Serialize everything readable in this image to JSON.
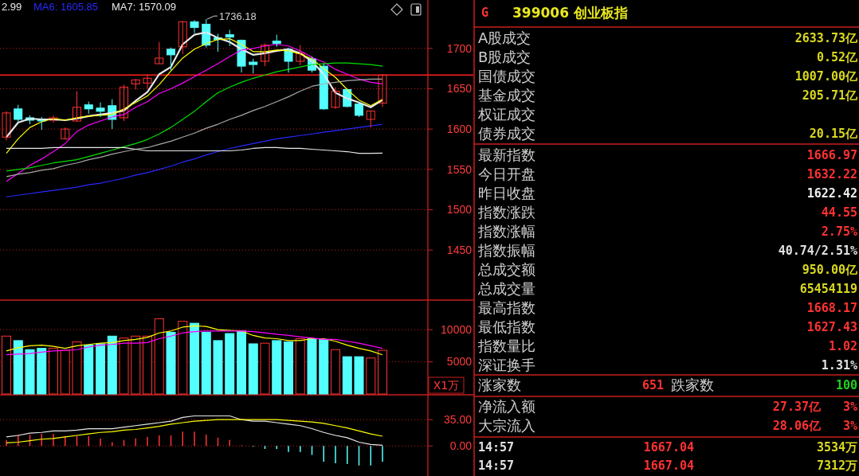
{
  "chart_data": [
    {
      "type": "candlestick",
      "categories": [
        null,
        null,
        null,
        null,
        null,
        null,
        null,
        null,
        null,
        null,
        null,
        null,
        null,
        null,
        null,
        null,
        null,
        null,
        null,
        null,
        null,
        null,
        null,
        null,
        null,
        null,
        null,
        null,
        null,
        null,
        null,
        null,
        null
      ],
      "ohlc": [
        [
          1590,
          1622,
          1586,
          1620
        ],
        [
          1625,
          1630,
          1608,
          1612
        ],
        [
          1614,
          1617,
          1606,
          1611
        ],
        [
          1612,
          1615,
          1599,
          1610
        ],
        [
          1611,
          1617,
          1608,
          1614
        ],
        [
          1588,
          1602,
          1587,
          1600
        ],
        [
          1610,
          1647,
          1609,
          1627
        ],
        [
          1630,
          1634,
          1619,
          1625
        ],
        [
          1626,
          1633,
          1615,
          1622
        ],
        [
          1629,
          1637,
          1600,
          1612
        ],
        [
          1614,
          1655,
          1610,
          1652
        ],
        [
          1656,
          1662,
          1649,
          1661
        ],
        [
          1657,
          1668,
          1650,
          1663
        ],
        [
          1681,
          1708,
          1681,
          1688
        ],
        [
          1699,
          1701,
          1673,
          1692
        ],
        [
          1702,
          1734,
          1693,
          1733
        ],
        [
          1733,
          1735,
          1719,
          1726
        ],
        [
          1730,
          1736.18,
          1701,
          1704
        ],
        [
          1713,
          1718,
          1696,
          1711
        ],
        [
          1717,
          1723,
          1703,
          1714
        ],
        [
          1710,
          1711,
          1670,
          1678
        ],
        [
          1683,
          1687,
          1669,
          1680
        ],
        [
          1684,
          1706,
          1678,
          1704
        ],
        [
          1709,
          1717,
          1702,
          1706
        ],
        [
          1699,
          1701,
          1670,
          1684
        ],
        [
          1684,
          1704,
          1679,
          1694
        ],
        [
          1687,
          1690,
          1670,
          1673
        ],
        [
          1678,
          1681,
          1624,
          1625
        ],
        [
          1627,
          1652,
          1625,
          1647
        ],
        [
          1649,
          1650,
          1627,
          1628
        ],
        [
          1631,
          1633,
          1615,
          1617
        ],
        [
          1612,
          1622.42,
          1602,
          1622.42
        ],
        [
          1632.22,
          1668.17,
          1627.43,
          1666.97
        ]
      ],
      "colors": [
        "#ff3232",
        "#54ffff",
        "#54ffff",
        "#54ffff",
        "#ff3232",
        "#ff3232",
        "#ff3232",
        "#54ffff",
        "#54ffff",
        "#54ffff",
        "#ff3232",
        "#ff3232",
        "#ff3232",
        "#ff3232",
        "#54ffff",
        "#ff3232",
        "#54ffff",
        "#54ffff",
        "#54ffff",
        "#54ffff",
        "#54ffff",
        "#54ffff",
        "#ff3232",
        "#54ffff",
        "#54ffff",
        "#ff3232",
        "#54ffff",
        "#54ffff",
        "#ff3232",
        "#54ffff",
        "#54ffff",
        "#ff3232",
        "#ff3232"
      ],
      "series": [
        {
          "type": "line",
          "color": "#e8e8e8",
          "values": [
            1590,
            1608,
            1613,
            1612,
            1612,
            1611,
            1613,
            1616,
            1618,
            1620,
            1623,
            1635,
            1646,
            1668,
            1677,
            1705,
            1717,
            1720,
            1713,
            1708,
            1699,
            1692,
            1694,
            1697,
            1699,
            1694,
            1684,
            1668,
            1645,
            1638,
            1633,
            1627,
            1636
          ]
        },
        {
          "type": "line",
          "color": "#ffff00",
          "values": [
            1570,
            1588,
            1602,
            1609,
            1613,
            1611,
            1614,
            1616,
            1617,
            1618,
            1625,
            1633,
            1641,
            1655,
            1672,
            1688,
            1699,
            1706,
            1711,
            1712,
            1705,
            1696,
            1696,
            1698,
            1697,
            1693,
            1687,
            1675,
            1664,
            1649,
            1636,
            1629,
            1637
          ]
        },
        {
          "type": "line",
          "color": "#ff00ff",
          "values": [
            1535,
            1545,
            1555,
            1563,
            1572,
            1582,
            1597,
            1605,
            1610,
            1615,
            1618,
            1627,
            1634,
            1644,
            1650,
            1657,
            1665,
            1673,
            1681,
            1690,
            1698,
            1700,
            1703,
            1705,
            1703,
            1697,
            1689,
            1683,
            1674,
            1668,
            1662,
            1658,
            1656
          ]
        },
        {
          "type": "line",
          "color": "#00e000",
          "values": [
            1548,
            1550,
            1552,
            1555,
            1558,
            1560,
            1562,
            1566,
            1570,
            1574,
            1578,
            1582,
            1587,
            1594,
            1602,
            1612,
            1622,
            1634,
            1645,
            1652,
            1658,
            1663,
            1667,
            1671,
            1674,
            1677,
            1680,
            1681,
            1682,
            1682,
            1681,
            1680,
            1678
          ]
        },
        {
          "type": "line",
          "color": "#a8a8a8",
          "values": [
            1541,
            1544,
            1546,
            1549,
            1551,
            1555,
            1558,
            1562,
            1565,
            1569,
            1572,
            1575,
            1577,
            1581,
            1585,
            1590,
            1595,
            1601,
            1606,
            1612,
            1617,
            1623,
            1628,
            1634,
            1640,
            1647,
            1653,
            1656,
            1658,
            1660,
            1661,
            1662,
            1662
          ]
        },
        {
          "type": "line",
          "name": "MA6: 1605.85",
          "color": "#2828ff",
          "values": [
            1516,
            1518,
            1520,
            1522,
            1524,
            1526,
            1528,
            1531,
            1533,
            1536,
            1539,
            1543,
            1546,
            1550,
            1554,
            1559,
            1563,
            1568,
            1572,
            1576,
            1579,
            1582,
            1585,
            1588,
            1590,
            1592,
            1594,
            1596,
            1598,
            1600,
            1602,
            1604,
            1605.85
          ]
        },
        {
          "type": "line",
          "name": "MA7: 1570.09",
          "color": "#e8e8e8",
          "values": [
            1576,
            1576,
            1576,
            1576,
            1577,
            1577,
            1577,
            1577,
            1577,
            1577,
            1577,
            1575,
            1573,
            1573,
            1573,
            1573,
            1573,
            1573,
            1573,
            1573,
            1574,
            1576,
            1577,
            1577,
            1576,
            1576,
            1575,
            1574,
            1573,
            1572,
            1570,
            1570,
            1570.09
          ]
        }
      ],
      "ylim": [
        1388,
        1760
      ],
      "yticks": [
        1450,
        1500,
        1550,
        1600,
        1650,
        1700
      ],
      "grid": "y",
      "tick_labels": "y",
      "legend": "top left",
      "ref_lines": [
        {
          "axis": "y",
          "value": 1667,
          "color": "#ff2020"
        }
      ],
      "annotations": [
        "2.99",
        "1736.18"
      ]
    },
    {
      "type": "bar",
      "categories": [
        null,
        null,
        null,
        null,
        null,
        null,
        null,
        null,
        null,
        null,
        null,
        null,
        null,
        null,
        null,
        null,
        null,
        null,
        null,
        null,
        null,
        null,
        null,
        null,
        null,
        null,
        null,
        null,
        null,
        null,
        null,
        null,
        null
      ],
      "series": [
        {
          "color": "#ff3232",
          "values": [
            9000,
            null,
            null,
            null,
            7100,
            6800,
            8100,
            null,
            null,
            null,
            8700,
            9000,
            9000,
            11700,
            null,
            11300,
            null,
            null,
            null,
            null,
            null,
            null,
            7900,
            null,
            null,
            8600,
            null,
            null,
            6900,
            null,
            null,
            5600,
            6800
          ]
        },
        {
          "color": "#54ffff",
          "values": [
            null,
            8300,
            6900,
            7100,
            null,
            null,
            null,
            7600,
            7800,
            9000,
            null,
            null,
            null,
            null,
            9600,
            null,
            11000,
            9600,
            8300,
            9400,
            9800,
            7800,
            null,
            8300,
            8100,
            null,
            8600,
            8500,
            null,
            5800,
            5800,
            null,
            null
          ]
        },
        {
          "type": "line",
          "color": "#ffff00",
          "values": [
            6700,
            7200,
            7500,
            7600,
            7400,
            7100,
            7500,
            7700,
            7900,
            8000,
            8300,
            8500,
            8800,
            9500,
            9800,
            10400,
            10600,
            10500,
            10000,
            9900,
            9800,
            9100,
            8700,
            8600,
            8300,
            8300,
            8600,
            8600,
            8200,
            7600,
            7100,
            6700,
            6100
          ]
        },
        {
          "type": "line",
          "color": "#ff00ff",
          "values": [
            6100,
            6200,
            6300,
            6500,
            6700,
            6800,
            6900,
            7300,
            7600,
            7700,
            7900,
            7900,
            8000,
            8600,
            9000,
            9500,
            9700,
            9800,
            9800,
            9800,
            9800,
            9700,
            9500,
            9300,
            9100,
            8900,
            8700,
            8500,
            8500,
            8200,
            7900,
            7500,
            7100
          ]
        }
      ],
      "ylim": [
        0,
        14600
      ],
      "yticks": [
        5000,
        10000
      ],
      "ylabel": "X1万",
      "grid": "y",
      "tick_labels": "y"
    },
    {
      "type": "bar",
      "categories": [
        null,
        null,
        null,
        null,
        null,
        null,
        null,
        null,
        null,
        null,
        null,
        null,
        null,
        null,
        null,
        null,
        null,
        null,
        null,
        null,
        null,
        null,
        null,
        null,
        null,
        null,
        null,
        null,
        null,
        null,
        null,
        null,
        null
      ],
      "series": [
        {
          "color": "#ff3232",
          "values": [
            8,
            15,
            15,
            16,
            16,
            13,
            13,
            13,
            10,
            5,
            8,
            10,
            12,
            14,
            14,
            19,
            19,
            15,
            11,
            8,
            1,
            null,
            null,
            null,
            null,
            null,
            null,
            null,
            null,
            null,
            null,
            null,
            null
          ]
        },
        {
          "color": "#54ffff",
          "values": [
            null,
            null,
            null,
            null,
            null,
            null,
            null,
            null,
            null,
            null,
            null,
            null,
            null,
            null,
            null,
            null,
            null,
            null,
            null,
            null,
            null,
            -1,
            -4,
            -4,
            -8,
            -8,
            -12,
            -21,
            -23,
            -24,
            -26,
            -26,
            -21
          ]
        },
        {
          "type": "line",
          "color": "#e8e8e8",
          "values": [
            12,
            14,
            17,
            18,
            20,
            20,
            21,
            23,
            23,
            23,
            25,
            27,
            29,
            31,
            33,
            38,
            40,
            40,
            40,
            40,
            35,
            33,
            33,
            31,
            29,
            27,
            23,
            18,
            14,
            11,
            5,
            2,
            1
          ]
        },
        {
          "type": "line",
          "color": "#ffff00",
          "values": [
            4,
            5,
            7,
            9,
            10,
            12,
            14,
            16,
            18,
            19,
            21,
            22,
            24,
            26,
            29,
            31,
            33,
            34,
            35,
            35,
            35,
            35,
            35,
            35,
            34,
            33,
            32,
            30,
            27,
            24,
            20,
            16,
            13
          ]
        }
      ],
      "ylim": [
        -40,
        67
      ],
      "yticks": [
        {
          "value": 0,
          "label": "0.00"
        },
        {
          "value": 35,
          "label": "35.00"
        }
      ],
      "grid": "y",
      "tick_labels": "y"
    },
    {
      "type": "other",
      "title": "399006 创业板指",
      "categories": [
        "A股成交",
        "B股成交",
        "国债成交",
        "基金成交",
        "权证成交",
        "债券成交",
        "最新指数",
        "今日开盘",
        "昨日收盘",
        "指数涨跌",
        "指数涨幅",
        "指数振幅",
        "总成交额",
        "总成交量",
        "最高指数",
        "最低指数",
        "指数量比",
        "深证换手"
      ],
      "value_labels": [
        "2633.73亿",
        "0.52亿",
        "1007.00亿",
        "205.71亿",
        null,
        "20.15亿",
        "1666.97",
        "1632.22",
        "1622.42",
        "44.55",
        "2.75%",
        "40.74/2.51%",
        "950.00亿",
        "65454119",
        "1668.17",
        "1627.43",
        "1.02",
        "1.31%"
      ],
      "colors": [
        "#d8d820",
        "#d8d820",
        "#d8d820",
        "#d8d820",
        "#d8d820",
        "#d8d820",
        "#ff3232",
        "#ff3232",
        "#f0f0f0",
        "#ff3232",
        "#ff3232",
        "#e0e0e0",
        "#d8d820",
        "#d8d820",
        "#ff3232",
        "#ff3232",
        "#ff3232",
        "#e0e0e0"
      ],
      "annotations": [
        "G",
        "涨家数",
        "651",
        "跌家数",
        "100",
        "净流入额",
        "27.37亿",
        "3%",
        "大宗流入",
        "28.06亿",
        "3%",
        "14:57",
        "1667.04",
        "3534万",
        "14:57",
        "1667.04",
        "7312万"
      ]
    }
  ]
}
